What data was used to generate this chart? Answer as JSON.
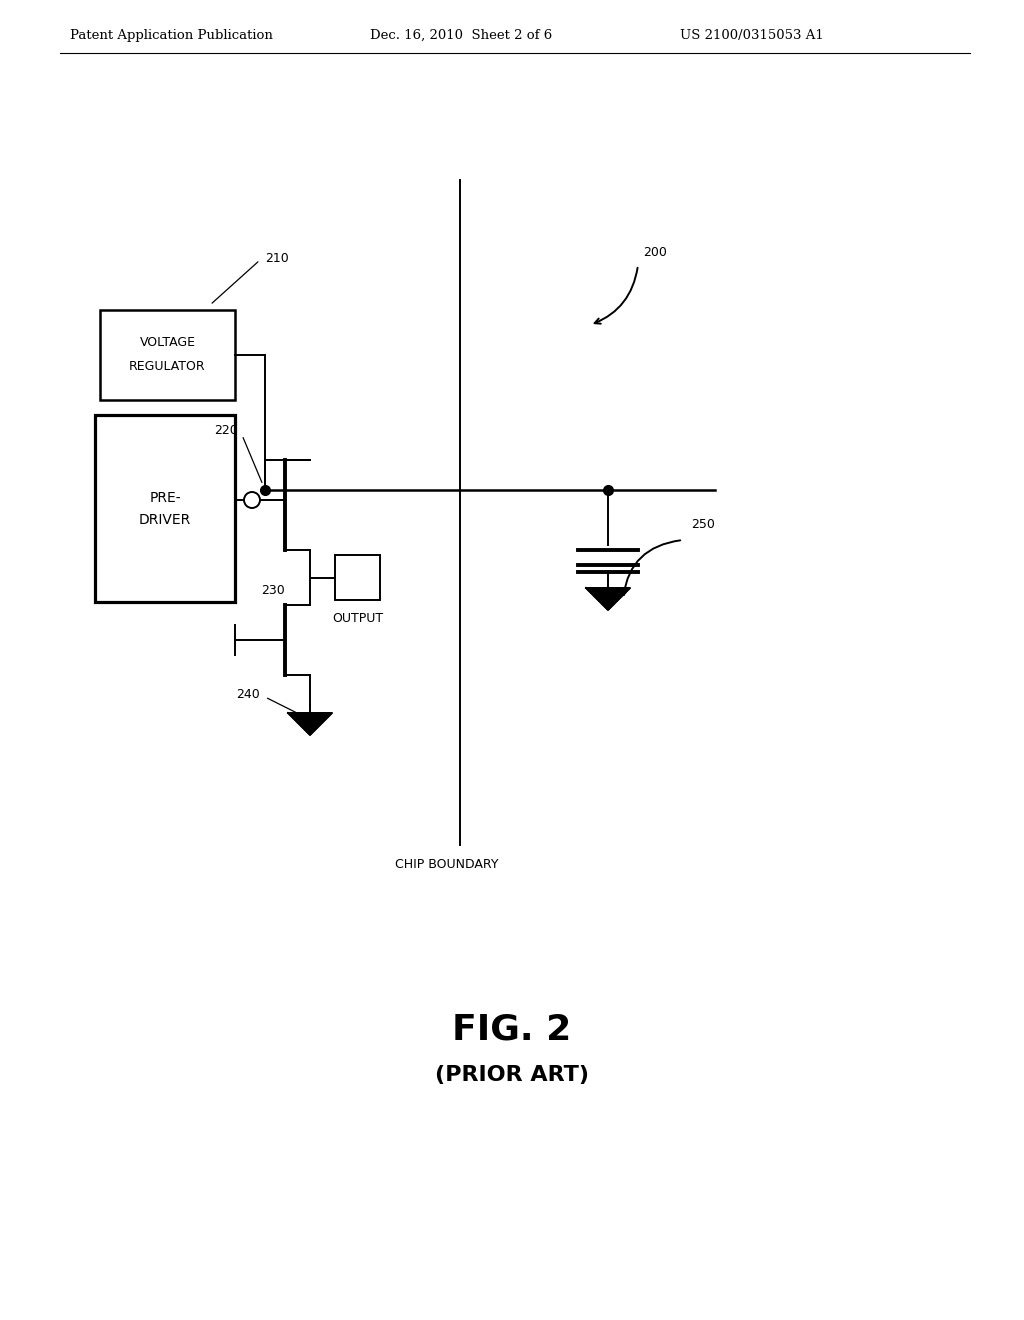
{
  "bg_color": "#ffffff",
  "header_left": "Patent Application Publication",
  "header_mid": "Dec. 16, 2010  Sheet 2 of 6",
  "header_right": "US 2100/0315053 A1",
  "fig_label": "FIG. 2",
  "fig_sublabel": "(PRIOR ART)",
  "chip_boundary_label": "CHIP BOUNDARY",
  "label_200": "200",
  "label_210": "210",
  "label_220": "220",
  "label_230": "230",
  "label_240": "240",
  "label_250": "250",
  "vr_label1": "VOLTAGE",
  "vr_label2": "REGULATOR",
  "pd_label1": "PRE-",
  "pd_label2": "DRIVER",
  "output_label": "OUTPUT",
  "header_right_correct": "US 2100/0315053 A1"
}
